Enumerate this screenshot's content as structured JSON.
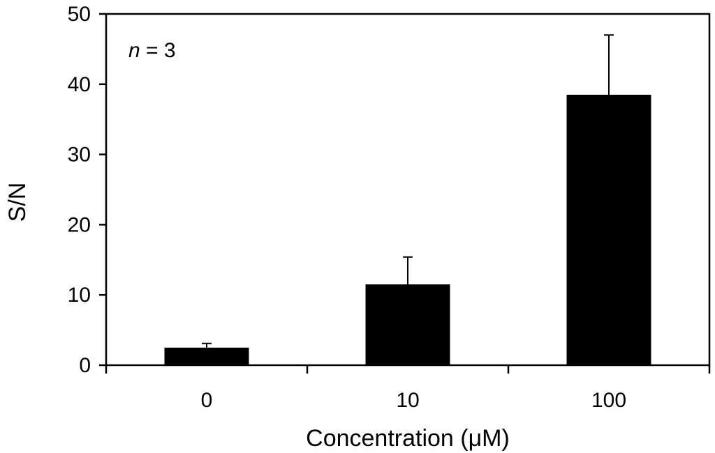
{
  "chart_data": {
    "type": "bar",
    "categories": [
      "0",
      "10",
      "100"
    ],
    "values": [
      2.5,
      11.5,
      38.5
    ],
    "error_bars": [
      0.6,
      3.9,
      8.5
    ],
    "xlabel": "Concentration (μM)",
    "ylabel": "S/N",
    "ylim": [
      0,
      50
    ],
    "yticks": [
      "0",
      "10",
      "20",
      "30",
      "40",
      "50"
    ],
    "annotation": {
      "italic": "n",
      "rest": " = 3"
    },
    "grid": false,
    "legend": "none",
    "bar_color": "#000000"
  }
}
